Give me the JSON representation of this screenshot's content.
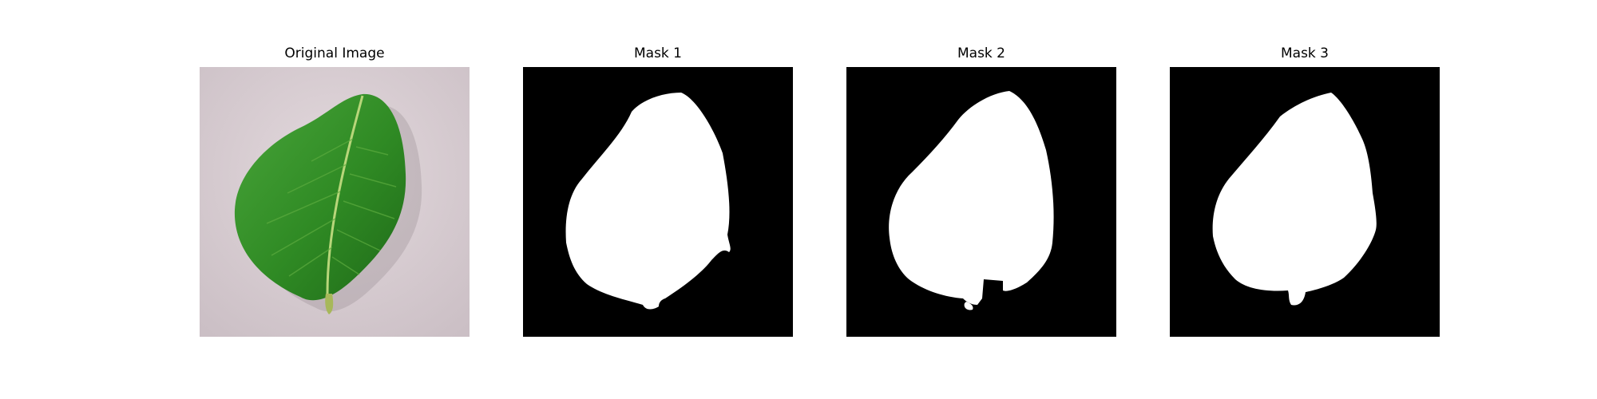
{
  "figure": {
    "panels": [
      {
        "title": "Original Image"
      },
      {
        "title": "Mask 1"
      },
      {
        "title": "Mask 2"
      },
      {
        "title": "Mask 3"
      }
    ]
  },
  "colors": {
    "mask_background": "#000000",
    "mask_foreground": "#ffffff",
    "leaf_green": "#2f8a24",
    "surface": "#d8cdd2"
  }
}
